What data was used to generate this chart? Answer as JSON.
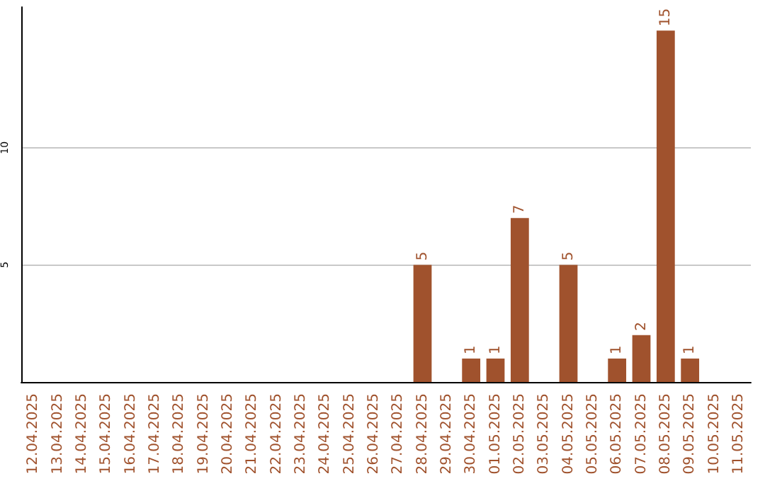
{
  "chart_data": {
    "type": "bar",
    "categories": [
      "12.04.2025",
      "13.04.2025",
      "14.04.2025",
      "15.04.2025",
      "16.04.2025",
      "17.04.2025",
      "18.04.2025",
      "19.04.2025",
      "20.04.2025",
      "21.04.2025",
      "22.04.2025",
      "23.04.2025",
      "24.04.2025",
      "25.04.2025",
      "26.04.2025",
      "27.04.2025",
      "28.04.2025",
      "29.04.2025",
      "30.04.2025",
      "01.05.2025",
      "02.05.2025",
      "03.05.2025",
      "04.05.2025",
      "05.05.2025",
      "06.05.2025",
      "07.05.2025",
      "08.05.2025",
      "09.05.2025",
      "10.05.2025",
      "11.05.2025"
    ],
    "values": [
      0,
      0,
      0,
      0,
      0,
      0,
      0,
      0,
      0,
      0,
      0,
      0,
      0,
      0,
      0,
      0,
      5,
      0,
      1,
      1,
      7,
      0,
      5,
      0,
      1,
      2,
      15,
      1,
      0,
      0
    ],
    "value_labels": [
      null,
      null,
      null,
      null,
      null,
      null,
      null,
      null,
      null,
      null,
      null,
      null,
      null,
      null,
      null,
      null,
      "5",
      null,
      "1",
      "1",
      "7",
      null,
      "5",
      null,
      "1",
      "2",
      "15",
      "1",
      null,
      null
    ],
    "color": "#a0522d",
    "ylim": [
      0,
      16
    ],
    "yticks": [
      5,
      10
    ],
    "grid": "y"
  }
}
